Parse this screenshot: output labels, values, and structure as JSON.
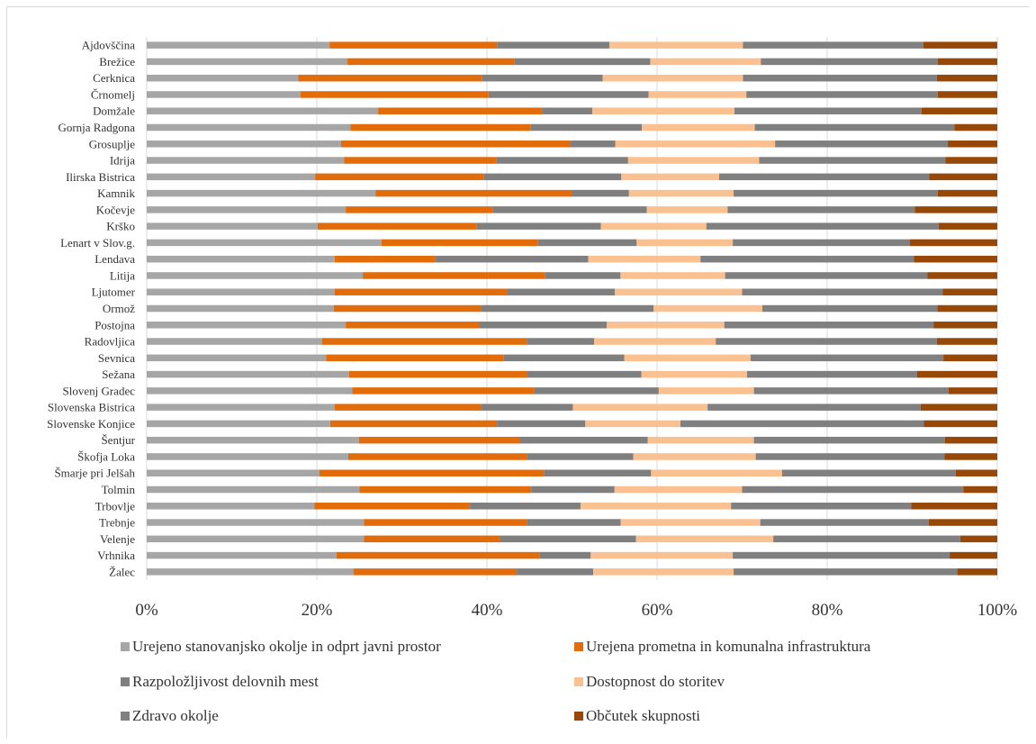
{
  "chart_data": {
    "type": "bar",
    "orientation": "horizontal",
    "stacked": true,
    "normalized_percent": true,
    "grid": true,
    "legend_position": "bottom",
    "xlim": [
      0,
      100
    ],
    "x_ticks": [
      "0%",
      "20%",
      "40%",
      "60%",
      "80%",
      "100%"
    ],
    "categories": [
      "Ajdovščina",
      "Brežice",
      "Cerknica",
      "Črnomelj",
      "Domžale",
      "Gornja Radgona",
      "Grosuplje",
      "Idrija",
      "Ilirska Bistrica",
      "Kamnik",
      "Kočevje",
      "Krško",
      "Lenart v Slov.g.",
      "Lendava",
      "Litija",
      "Ljutomer",
      "Ormož",
      "Postojna",
      "Radovljica",
      "Sevnica",
      "Sežana",
      "Slovenj Gradec",
      "Slovenska Bistrica",
      "Slovenske Konjice",
      "Šentjur",
      "Škofja Loka",
      "Šmarje pri Jelšah",
      "Tolmin",
      "Trbovlje",
      "Trebnje",
      "Velenje",
      "Vrhnika",
      "Žalec"
    ],
    "series": [
      {
        "name": "Urejeno stanovanjsko okolje in odprt javni prostor",
        "color": "#a6a6a6",
        "values": [
          21.5,
          23.6,
          17.8,
          18.1,
          27.2,
          24.2,
          22.4,
          23.2,
          19.8,
          26.9,
          23.4,
          20.1,
          27.6,
          22.1,
          25.4,
          22.3,
          22.2,
          23.4,
          20.6,
          21.3,
          24.5,
          24.4,
          22.3,
          22.0,
          25.2,
          23.7,
          20.3,
          25.0,
          19.7,
          26.3,
          25.8,
          22.3,
          24.3
        ]
      },
      {
        "name": "Urejena prometna in komunalna infrastruktura",
        "color": "#e36c0a",
        "values": [
          19.7,
          19.6,
          21.6,
          22.1,
          19.3,
          21.4,
          26.4,
          17.9,
          19.8,
          23.1,
          17.3,
          18.7,
          18.4,
          11.8,
          21.4,
          20.5,
          17.5,
          15.7,
          24.1,
          21.1,
          21.6,
          21.6,
          17.4,
          20.0,
          19.1,
          21.0,
          26.4,
          20.2,
          18.3,
          19.8,
          16.2,
          23.9,
          19.2
        ]
      },
      {
        "name": "Razpoložljivost delovnih mest",
        "color": "#7f7f7f",
        "values": [
          13.2,
          16.0,
          14.2,
          18.8,
          5.9,
          13.2,
          5.2,
          15.5,
          16.2,
          6.7,
          18.1,
          14.6,
          11.6,
          18.0,
          8.9,
          12.8,
          20.5,
          15.0,
          7.9,
          14.3,
          13.8,
          14.8,
          10.9,
          10.6,
          15.2,
          12.5,
          12.6,
          9.8,
          13.0,
          11.3,
          16.1,
          6.0,
          9.0
        ]
      },
      {
        "name": "Dostopnost do storitev",
        "color": "#fac090",
        "values": [
          15.7,
          13.0,
          16.5,
          11.5,
          16.7,
          13.4,
          18.4,
          15.4,
          11.5,
          12.3,
          9.5,
          12.4,
          11.3,
          13.2,
          12.3,
          15.1,
          12.9,
          13.8,
          14.3,
          15.0,
          12.8,
          11.3,
          16.0,
          11.4,
          12.6,
          14.4,
          15.4,
          15.0,
          17.7,
          16.9,
          16.3,
          16.7,
          16.5
        ]
      },
      {
        "name": "Zdravo okolje",
        "color": "#808080",
        "values": [
          21.2,
          20.8,
          22.8,
          22.5,
          22.0,
          23.7,
          19.9,
          21.9,
          24.7,
          24.0,
          22.0,
          27.3,
          20.8,
          25.1,
          23.8,
          23.8,
          20.8,
          24.6,
          26.0,
          22.9,
          20.6,
          23.1,
          25.3,
          29.2,
          22.7,
          22.2,
          20.4,
          26.0,
          21.2,
          20.4,
          22.2,
          25.5,
          26.3
        ]
      },
      {
        "name": "Občutek skupnosti",
        "color": "#974806",
        "values": [
          8.7,
          7.0,
          7.1,
          7.0,
          8.9,
          5.1,
          5.7,
          6.1,
          8.0,
          7.0,
          9.7,
          6.9,
          10.3,
          9.8,
          8.2,
          6.5,
          7.1,
          7.5,
          7.1,
          6.4,
          9.7,
          5.8,
          9.1,
          8.8,
          6.2,
          6.2,
          4.9,
          4.0,
          10.1,
          8.3,
          4.4,
          5.6,
          4.7
        ]
      }
    ]
  }
}
